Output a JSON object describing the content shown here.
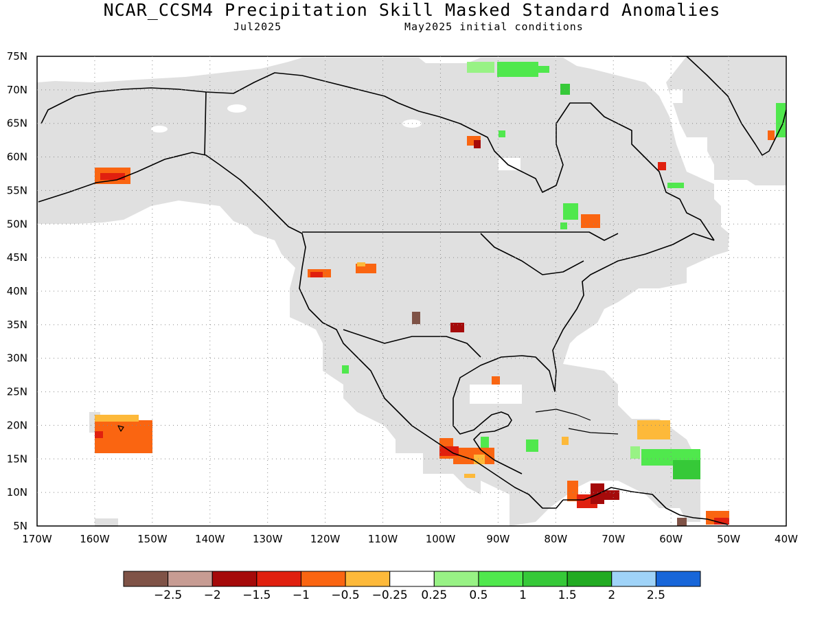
{
  "header": {
    "title": "NCAR_CCSM4 Precipitation Skill Masked Standard Anomalies",
    "subtitle_left": "Jul2025",
    "subtitle_right": "May2025 initial conditions"
  },
  "map": {
    "extent": {
      "lon": [
        -170,
        -40
      ],
      "lat": [
        5,
        75
      ]
    },
    "grid": "dotted",
    "lat_labels": [
      "75N",
      "70N",
      "65N",
      "60N",
      "55N",
      "50N",
      "45N",
      "40N",
      "35N",
      "30N",
      "25N",
      "20N",
      "15N",
      "10N",
      "5N"
    ],
    "lon_labels": [
      "170W",
      "160W",
      "150W",
      "140W",
      "130W",
      "120W",
      "110W",
      "100W",
      "90W",
      "80W",
      "70W",
      "60W",
      "50W",
      "40W"
    ],
    "masked_color": "#e0e0e0",
    "coast_color": "#000000"
  },
  "colorbar": {
    "colors": [
      "#7f5347",
      "#c79c93",
      "#a50a0a",
      "#e0200f",
      "#fa6511",
      "#fdb93a",
      "#ffffff",
      "#98f285",
      "#50e84d",
      "#36c938",
      "#22ab22",
      "#9fd3f8",
      "#1866d9"
    ],
    "labels": [
      "-2.5",
      "-2",
      "-1.5",
      "-1",
      "-0.5",
      "-0.25",
      "0.25",
      "0.5",
      "1",
      "1.5",
      "2",
      "2.5"
    ]
  }
}
